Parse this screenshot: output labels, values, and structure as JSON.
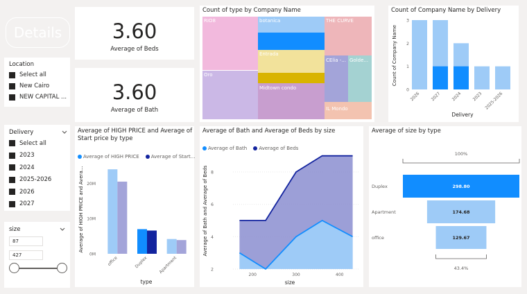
{
  "details_button": "Details",
  "kpi_beds": {
    "value": "3.60",
    "label": "Average of Beds"
  },
  "kpi_bath": {
    "value": "3.60",
    "label": "Average of Bath"
  },
  "location_slicer": {
    "title": "Location",
    "items": [
      "Select all",
      "New Cairo",
      "NEW CAPITAL ..."
    ]
  },
  "delivery_slicer": {
    "title": "Delivery",
    "items": [
      "Select all",
      "2023",
      "2024",
      "2025-2026",
      "2026",
      "2027"
    ]
  },
  "size_slicer": {
    "title": "size",
    "min": "87",
    "max": "427"
  },
  "treemap": {
    "title": "Count of type by Company Name",
    "tiles": [
      "RIO8",
      "botanica",
      "THE CURVE",
      "Oro",
      "Entrada",
      "CElia -...",
      "Golde...",
      "Midtown condo",
      "IL Mondo"
    ]
  },
  "colors": {
    "light_blue": "#9ecbf7",
    "dark_blue": "#118dff",
    "navy": "#12239e",
    "lavender": "#a3a4d9",
    "pink": "#f2b9dd",
    "purple_light": "#cbb8e6",
    "yellow": "#f2e29b",
    "gold": "#d9b400",
    "mauve": "#c89ecf",
    "teal": "#a4d2d2",
    "rose": "#eeb6ba",
    "salmon": "#f3c3b0"
  },
  "chart_data": [
    {
      "type": "bar",
      "title": "Count of Company Name by Delivery",
      "xlabel": "Delivery",
      "ylabel": "Count of Company Name",
      "categories": [
        "2026",
        "2027",
        "2024",
        "2023",
        "2025-2026"
      ],
      "series": [
        {
          "values": [
            3,
            3,
            2,
            1,
            1
          ]
        },
        {
          "values": [
            0,
            1,
            1,
            0,
            0
          ]
        }
      ],
      "ylim": [
        0,
        3
      ],
      "yticks": [
        "0",
        "1",
        "2",
        "3"
      ]
    },
    {
      "type": "bar",
      "title": "Average of HIGH PRICE and Average of Start price by type",
      "xlabel": "type",
      "ylabel": "Average of HIGH PRICE and Avera...",
      "categories": [
        "office",
        "Duplex",
        "Apartment"
      ],
      "series": [
        {
          "name": "Average of HIGH PRICE",
          "values": [
            24000000,
            7000000,
            4200000
          ]
        },
        {
          "name": "Average of Start...",
          "values": [
            20500000,
            6600000,
            3900000
          ]
        }
      ],
      "ylim": [
        0,
        26000000
      ],
      "yticks": [
        "0M",
        "10M",
        "20M"
      ]
    },
    {
      "type": "area",
      "title": "Average of Bath and Average of Beds by size",
      "xlabel": "size",
      "ylabel": "Average of Bath and Average of Beds",
      "series": [
        {
          "name": "Average of Bath",
          "x": [
            170,
            230,
            300,
            360,
            430
          ],
          "values": [
            3.0,
            2.0,
            4.0,
            5.0,
            4.0
          ]
        },
        {
          "name": "Average of Beds",
          "x": [
            170,
            230,
            300,
            360,
            430
          ],
          "values": [
            5.0,
            5.0,
            8.0,
            9.0,
            9.0
          ]
        }
      ],
      "xlim": [
        155,
        445
      ],
      "ylim": [
        2,
        9.2
      ],
      "xticks": [
        200,
        300,
        400
      ],
      "yticks": [
        2,
        4,
        6,
        8
      ]
    },
    {
      "type": "bar",
      "title": "Average of size by type",
      "categories": [
        "Duplex",
        "Apartment",
        "office"
      ],
      "values": [
        298.8,
        174.68,
        129.67
      ],
      "value_labels": [
        "298.80",
        "174.68",
        "129.67"
      ],
      "top_label": "100%",
      "bottom_label": "43.4%"
    }
  ]
}
